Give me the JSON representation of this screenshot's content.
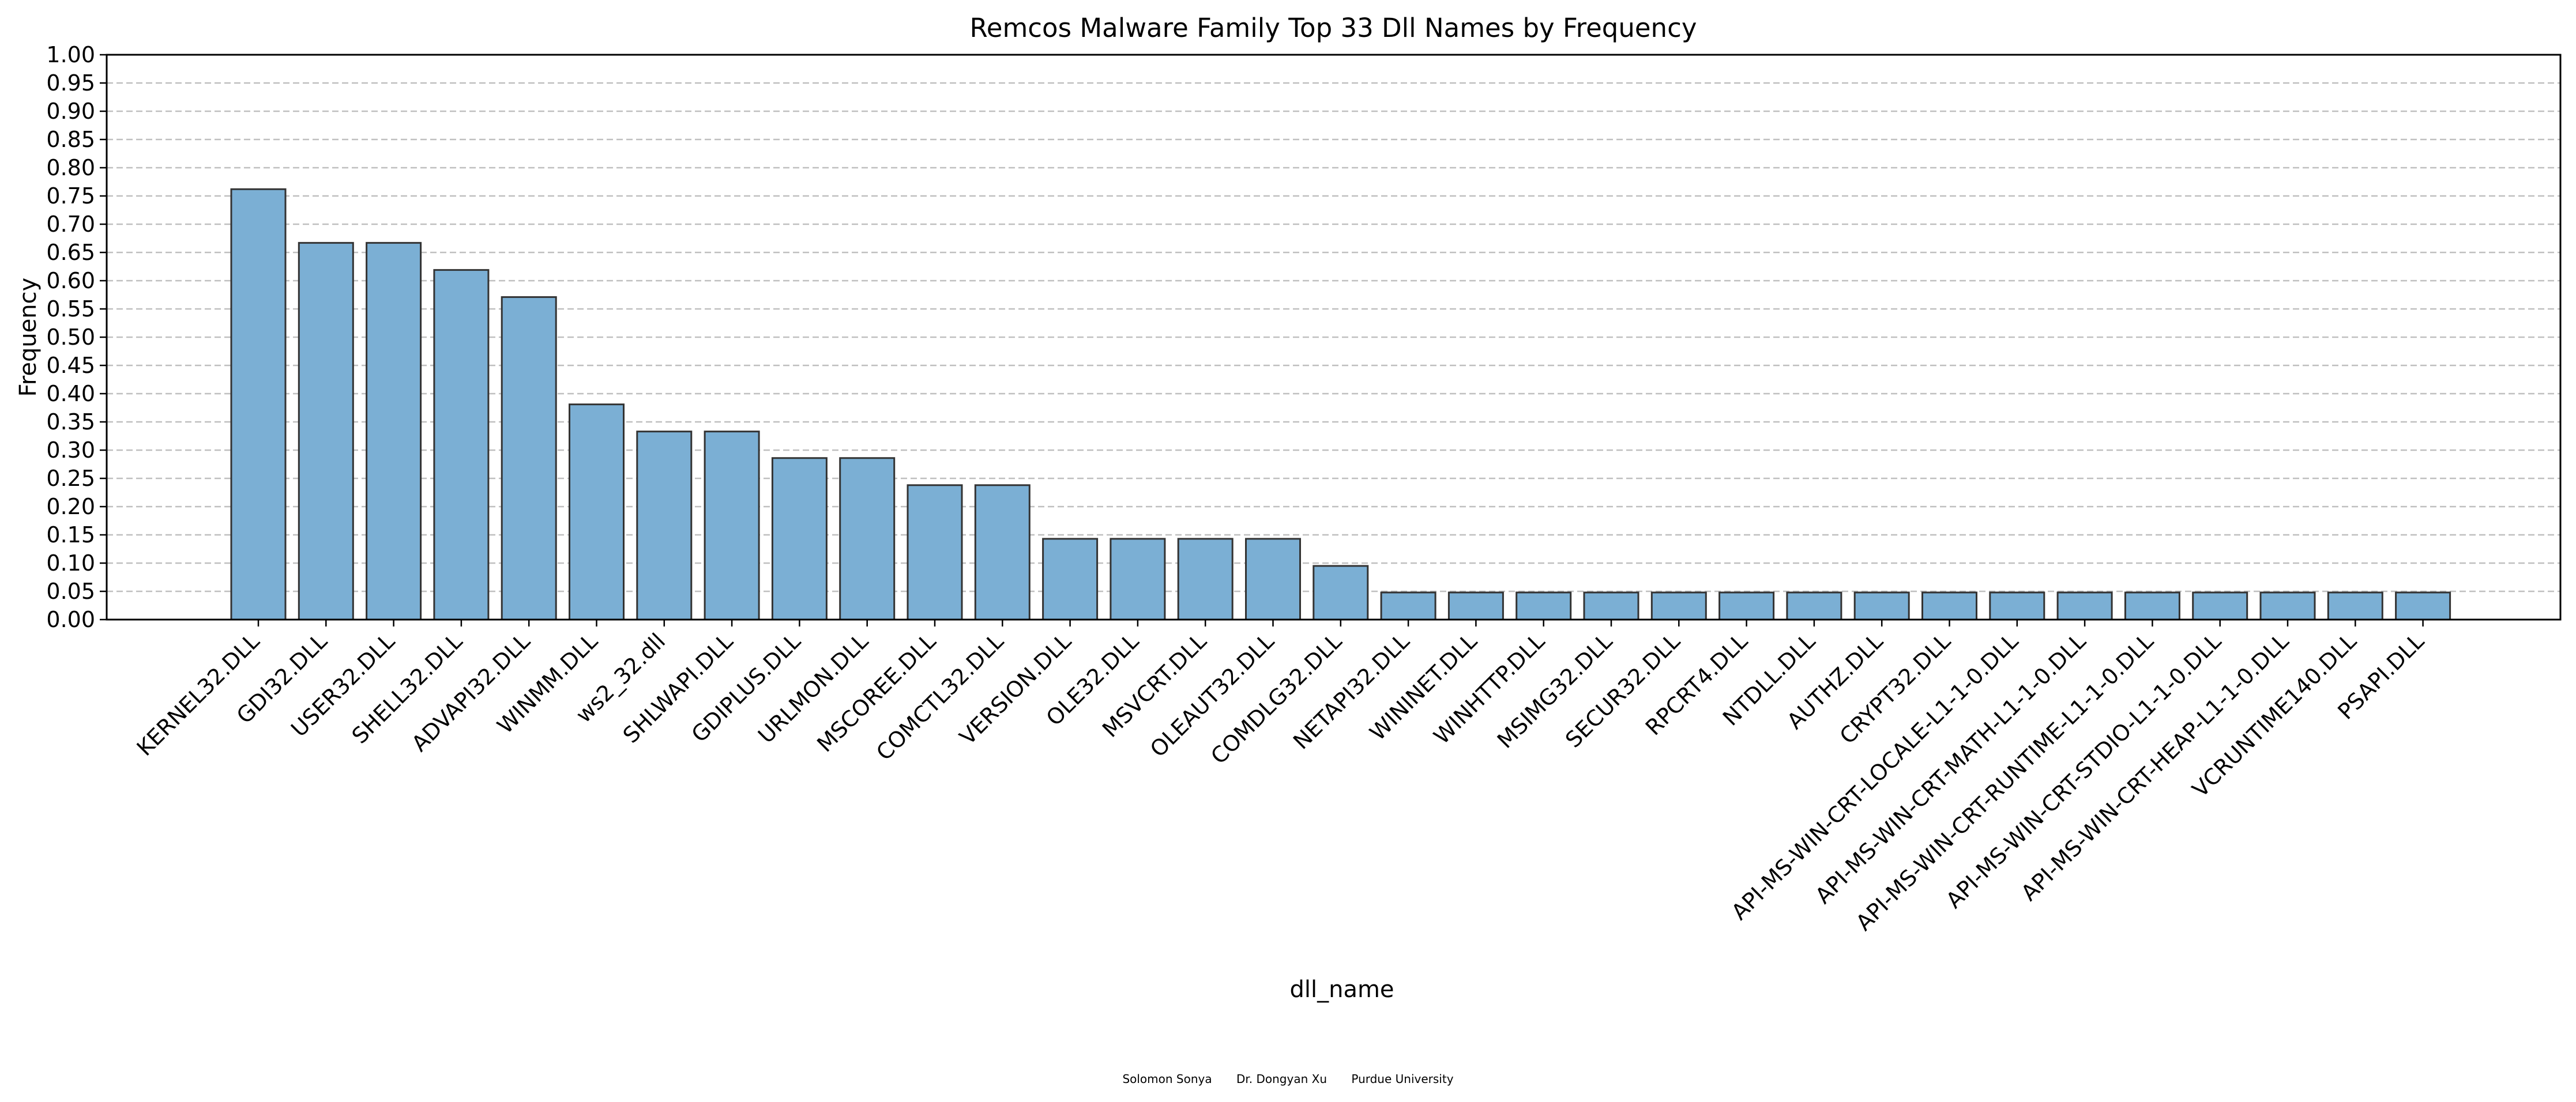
{
  "chart_data": {
    "type": "bar",
    "title": "Remcos Malware Family Top 33 Dll Names by Frequency",
    "xlabel": "dll_name",
    "ylabel": "Frequency",
    "ylim": [
      0,
      1.0
    ],
    "yticks": [
      "0.00",
      "0.05",
      "0.10",
      "0.15",
      "0.20",
      "0.25",
      "0.30",
      "0.35",
      "0.40",
      "0.45",
      "0.50",
      "0.55",
      "0.60",
      "0.65",
      "0.70",
      "0.75",
      "0.80",
      "0.85",
      "0.90",
      "0.95",
      "1.00"
    ],
    "grid": "horizontal dashed",
    "categories": [
      "KERNEL32.DLL",
      "GDI32.DLL",
      "USER32.DLL",
      "SHELL32.DLL",
      "ADVAPI32.DLL",
      "WINMM.DLL",
      "ws2_32.dll",
      "SHLWAPI.DLL",
      "GDIPLUS.DLL",
      "URLMON.DLL",
      "MSCOREE.DLL",
      "COMCTL32.DLL",
      "VERSION.DLL",
      "OLE32.DLL",
      "MSVCRT.DLL",
      "OLEAUT32.DLL",
      "COMDLG32.DLL",
      "NETAPI32.DLL",
      "WININET.DLL",
      "WINHTTP.DLL",
      "MSIMG32.DLL",
      "SECUR32.DLL",
      "RPCRT4.DLL",
      "NTDLL.DLL",
      "AUTHZ.DLL",
      "CRYPT32.DLL",
      "API-MS-WIN-CRT-LOCALE-L1-1-0.DLL",
      "API-MS-WIN-CRT-MATH-L1-1-0.DLL",
      "API-MS-WIN-CRT-RUNTIME-L1-1-0.DLL",
      "API-MS-WIN-CRT-STDIO-L1-1-0.DLL",
      "API-MS-WIN-CRT-HEAP-L1-1-0.DLL",
      "VCRUNTIME140.DLL",
      "PSAPI.DLL"
    ],
    "values": [
      0.762,
      0.667,
      0.667,
      0.619,
      0.571,
      0.381,
      0.333,
      0.333,
      0.286,
      0.286,
      0.238,
      0.238,
      0.143,
      0.143,
      0.143,
      0.143,
      0.095,
      0.048,
      0.048,
      0.048,
      0.048,
      0.048,
      0.048,
      0.048,
      0.048,
      0.048,
      0.048,
      0.048,
      0.048,
      0.048,
      0.048,
      0.048,
      0.048
    ],
    "bar_color": "#7bafd4",
    "bar_edge_color": "#333333",
    "grid_color": "#bfbfbf"
  },
  "footer": {
    "author1": "Solomon Sonya",
    "author2": "Dr. Dongyan Xu",
    "institution": "Purdue University"
  }
}
